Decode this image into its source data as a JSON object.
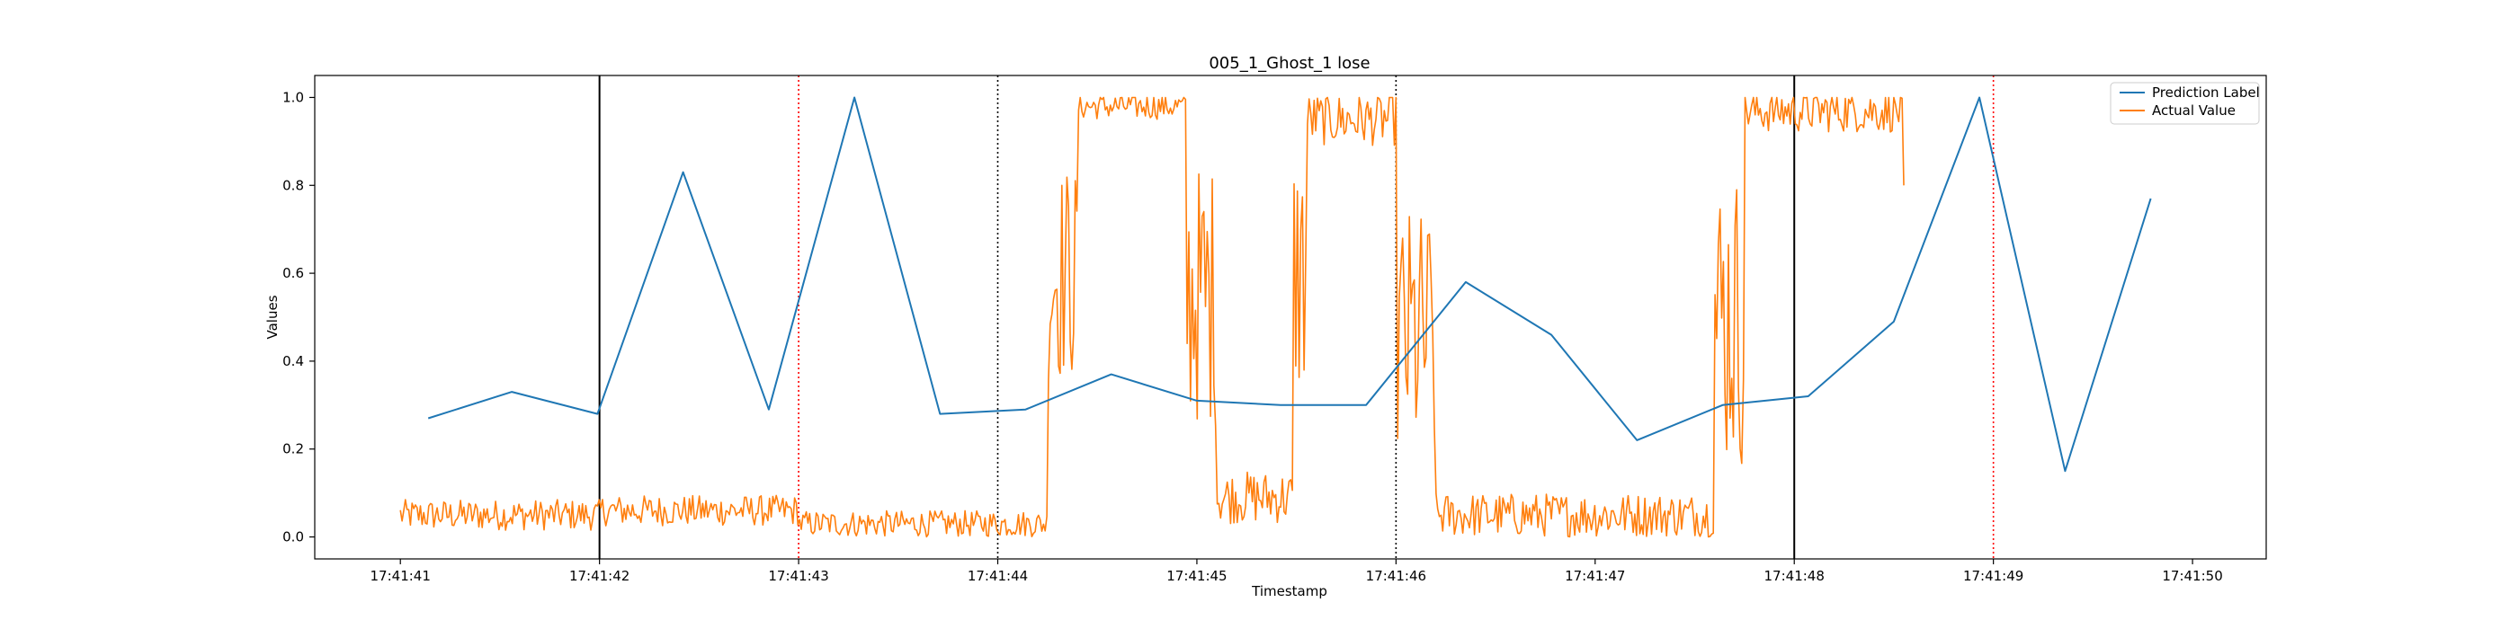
{
  "chart_data": {
    "type": "line",
    "title": "005_1_Ghost_1 lose",
    "xlabel": "Timestamp",
    "ylabel": "Values",
    "x_unit": "seconds within 17:41 minute",
    "xlim": [
      40.57,
      50.37
    ],
    "ylim": [
      -0.05,
      1.05
    ],
    "x_ticks": [
      41,
      42,
      43,
      44,
      45,
      46,
      47,
      48,
      49,
      50
    ],
    "x_tick_labels": [
      "17:41:41",
      "17:41:42",
      "17:41:43",
      "17:41:44",
      "17:41:45",
      "17:41:46",
      "17:41:47",
      "17:41:48",
      "17:41:49",
      "17:41:50"
    ],
    "y_ticks": [
      0.0,
      0.2,
      0.4,
      0.6,
      0.8,
      1.0
    ],
    "y_tick_labels": [
      "0.0",
      "0.2",
      "0.4",
      "0.6",
      "0.8",
      "1.0"
    ],
    "grid": false,
    "legend": {
      "placement": "top-right"
    },
    "series": [
      {
        "name": "Prediction Label",
        "color": "#1f77b4",
        "x": [
          41.14,
          41.56,
          41.99,
          42.42,
          42.85,
          43.28,
          43.71,
          44.14,
          44.57,
          45.0,
          45.42,
          45.85,
          46.35,
          46.78,
          47.21,
          47.64,
          48.07,
          48.5,
          48.93,
          49.36,
          49.79
        ],
        "values": [
          0.27,
          0.33,
          0.28,
          0.83,
          0.29,
          1.0,
          0.28,
          0.29,
          0.37,
          0.31,
          0.3,
          0.3,
          0.58,
          0.46,
          0.22,
          0.3,
          0.32,
          0.49,
          1.0,
          0.15,
          0.77
        ]
      },
      {
        "name": "Actual Value",
        "color": "#ff7f0e",
        "x_start": 41.0,
        "x_end": 48.55,
        "segments": [
          {
            "x_end": 42.0,
            "level": 0.05,
            "noise": 0.035
          },
          {
            "x_end": 43.0,
            "level": 0.06,
            "noise": 0.035
          },
          {
            "x_end": 44.25,
            "level": 0.03,
            "noise": 0.03
          },
          {
            "x_end": 44.4,
            "level": 0.6,
            "noise": 0.25
          },
          {
            "x_end": 44.95,
            "level": 0.98,
            "noise": 0.03
          },
          {
            "x_end": 45.1,
            "level": 0.55,
            "noise": 0.3
          },
          {
            "x_end": 45.48,
            "level": 0.09,
            "noise": 0.06
          },
          {
            "x_end": 45.55,
            "level": 0.6,
            "noise": 0.3
          },
          {
            "x_end": 46.0,
            "level": 0.95,
            "noise": 0.06
          },
          {
            "x_end": 46.2,
            "level": 0.45,
            "noise": 0.3
          },
          {
            "x_end": 47.6,
            "level": 0.05,
            "noise": 0.05
          },
          {
            "x_end": 47.75,
            "level": 0.5,
            "noise": 0.35
          },
          {
            "x_end": 48.55,
            "level": 0.97,
            "noise": 0.05
          }
        ],
        "final_value": 0.8
      }
    ],
    "vertical_lines": [
      {
        "x": 42.0,
        "style": "solid",
        "color": "#000000"
      },
      {
        "x": 43.0,
        "style": "dotted",
        "color": "#ff0000"
      },
      {
        "x": 44.0,
        "style": "dotted",
        "color": "#000000"
      },
      {
        "x": 46.0,
        "style": "dotted",
        "color": "#000000"
      },
      {
        "x": 48.0,
        "style": "solid",
        "color": "#000000"
      },
      {
        "x": 49.0,
        "style": "dotted",
        "color": "#ff0000"
      }
    ]
  }
}
